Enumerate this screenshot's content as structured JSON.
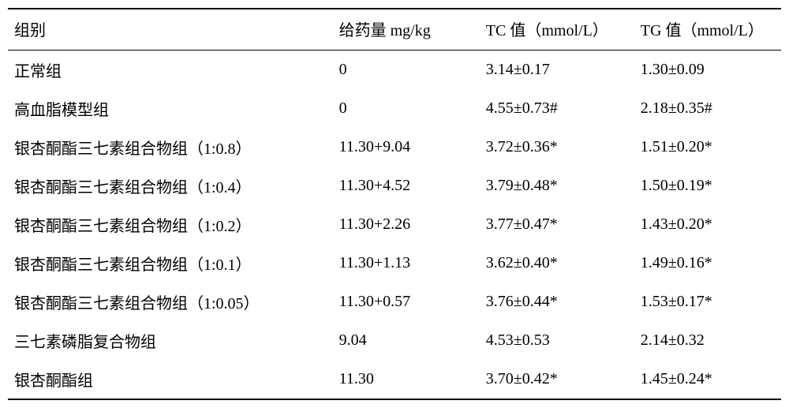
{
  "table": {
    "background_color": "#ffffff",
    "text_color": "#000000",
    "font_family": "SimSun",
    "font_size": 20,
    "border_color": "#000000",
    "columns": [
      "组别",
      "给药量 mg/kg",
      "TC 值（mmol/L）",
      "TG 值（mmol/L）"
    ],
    "rows": [
      [
        "正常组",
        "0",
        "3.14±0.17",
        "1.30±0.09"
      ],
      [
        "高血脂模型组",
        "0",
        "4.55±0.73#",
        "2.18±0.35#"
      ],
      [
        "银杏酮酯三七素组合物组（1:0.8）",
        "11.30+9.04",
        "3.72±0.36*",
        "1.51±0.20*"
      ],
      [
        "银杏酮酯三七素组合物组（1:0.4）",
        "11.30+4.52",
        "3.79±0.48*",
        "1.50±0.19*"
      ],
      [
        "银杏酮酯三七素组合物组（1:0.2）",
        "11.30+2.26",
        "3.77±0.47*",
        "1.43±0.20*"
      ],
      [
        "银杏酮酯三七素组合物组（1:0.1）",
        "11.30+1.13",
        "3.62±0.40*",
        "1.49±0.16*"
      ],
      [
        "银杏酮酯三七素组合物组（1:0.05）",
        "11.30+0.57",
        "3.76±0.44*",
        "1.53±0.17*"
      ],
      [
        "三七素磷脂复合物组",
        "9.04",
        "4.53±0.53",
        "2.14±0.32"
      ],
      [
        "银杏酮酯组",
        "11.30",
        "3.70±0.42*",
        "1.45±0.24*"
      ]
    ]
  }
}
